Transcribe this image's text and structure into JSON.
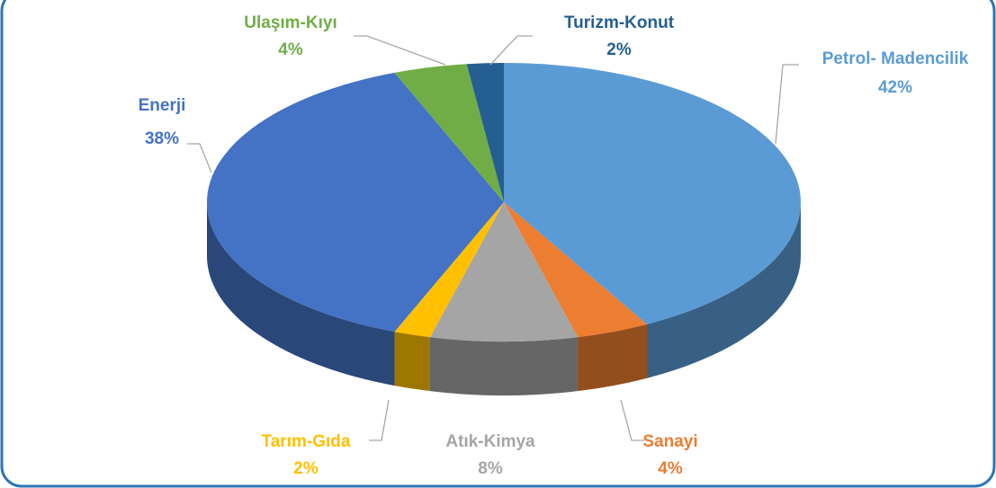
{
  "chart_data": {
    "type": "pie3d",
    "categories": [
      "Petrol- Madencilik",
      "Sanayi",
      "Atık-Kimya",
      "Tarım-Gıda",
      "Enerji",
      "Ulaşım-Kıyı",
      "Turizm-Konut"
    ],
    "values": [
      42,
      4,
      8,
      2,
      38,
      4,
      2
    ],
    "value_labels": [
      "42%",
      "4%",
      "8%",
      "2%",
      "38%",
      "4%",
      "2%"
    ],
    "colors": [
      "#5b9bd5",
      "#ed7d31",
      "#a5a5a5",
      "#ffc000",
      "#4472c4",
      "#70ad47",
      "#255e91"
    ]
  }
}
